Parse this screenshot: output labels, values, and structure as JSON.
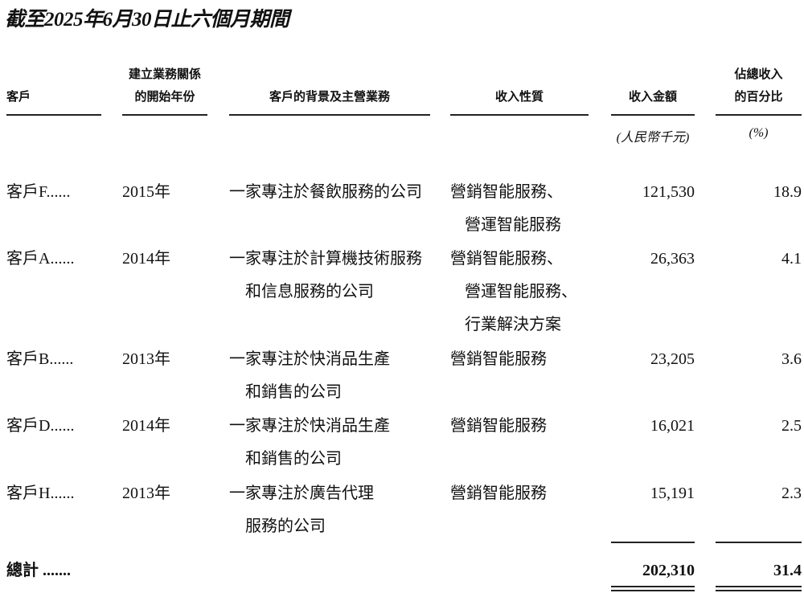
{
  "title": "截至2025年6月30日止六個月期間",
  "headers": {
    "client": "客戶",
    "year": [
      "建立業務關係",
      "的開始年份"
    ],
    "background": "客戶的背景及主營業務",
    "nature": "收入性質",
    "amount": "收入金額",
    "percent": [
      "佔總收入",
      "的百分比"
    ]
  },
  "units": {
    "amount": "(人民幣千元)",
    "percent": "(%)"
  },
  "rows": [
    {
      "client": "客戶F......",
      "year": "2015年",
      "background": [
        "一家專注於餐飲服務的公司"
      ],
      "nature": [
        "營銷智能服務、",
        "營運智能服務"
      ],
      "amount": "121,530",
      "percent": "18.9"
    },
    {
      "client": "客戶A......",
      "year": "2014年",
      "background": [
        "一家專注於計算機技術服務",
        "和信息服務的公司"
      ],
      "nature": [
        "營銷智能服務、",
        "營運智能服務、",
        "行業解決方案"
      ],
      "amount": "26,363",
      "percent": "4.1"
    },
    {
      "client": "客戶B......",
      "year": "2013年",
      "background": [
        "一家專注於快消品生產",
        "和銷售的公司"
      ],
      "nature": [
        "營銷智能服務"
      ],
      "amount": "23,205",
      "percent": "3.6"
    },
    {
      "client": "客戶D......",
      "year": "2014年",
      "background": [
        "一家專注於快消品生產",
        "和銷售的公司"
      ],
      "nature": [
        "營銷智能服務"
      ],
      "amount": "16,021",
      "percent": "2.5"
    },
    {
      "client": "客戶H......",
      "year": "2013年",
      "background": [
        "一家專注於廣告代理",
        "服務的公司"
      ],
      "nature": [
        "營銷智能服務"
      ],
      "amount": "15,191",
      "percent": "2.3"
    }
  ],
  "total": {
    "label": "總計 .......",
    "amount": "202,310",
    "percent": "31.4"
  }
}
